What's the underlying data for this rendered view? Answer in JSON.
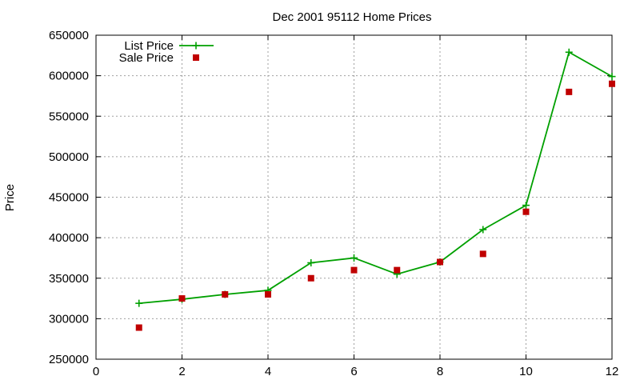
{
  "chart_data": {
    "type": "line",
    "title": "Dec 2001 95112 Home Prices",
    "xlabel": "",
    "ylabel": "Price",
    "xlim": [
      0,
      12
    ],
    "ylim": [
      250000,
      650000
    ],
    "xticks": [
      "0",
      "2",
      "4",
      "6",
      "8",
      "10",
      "12"
    ],
    "yticks": [
      "250000",
      "300000",
      "350000",
      "400000",
      "450000",
      "500000",
      "550000",
      "600000",
      "650000"
    ],
    "grid": true,
    "legend_position": "top-left",
    "series": [
      {
        "name": "List Price",
        "style": "line-with-plus-markers",
        "color": "#00a000",
        "x": [
          1,
          2,
          3,
          4,
          5,
          6,
          7,
          8,
          9,
          10,
          11,
          12
        ],
        "y": [
          319000,
          324000,
          330000,
          335000,
          369000,
          375000,
          355000,
          370000,
          410000,
          440000,
          629000,
          599000
        ]
      },
      {
        "name": "Sale Price",
        "style": "square-markers",
        "color": "#c00000",
        "x": [
          1,
          2,
          3,
          4,
          5,
          6,
          7,
          8,
          9,
          10,
          11,
          12
        ],
        "y": [
          289000,
          325000,
          330000,
          330000,
          350000,
          360000,
          360000,
          370000,
          380000,
          432000,
          580000,
          590000
        ]
      }
    ]
  }
}
